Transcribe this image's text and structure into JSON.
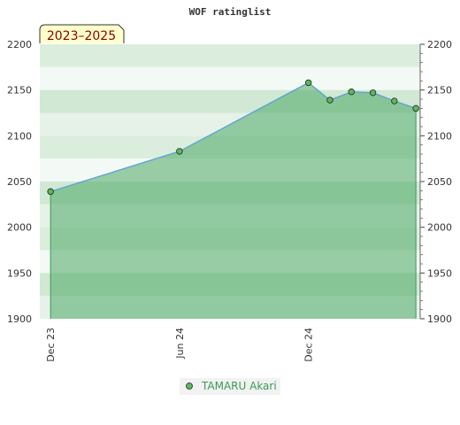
{
  "chart_data": {
    "type": "area",
    "title": "WOF ratinglist",
    "period_label": "2023–2025",
    "xlabel": "",
    "ylabel": "",
    "ylim": [
      1900,
      2200
    ],
    "y_ticks": [
      1900,
      1950,
      2000,
      2050,
      2100,
      2150,
      2200
    ],
    "x_ticks": [
      {
        "label": "Dec 23",
        "month": 0
      },
      {
        "label": "Jun 24",
        "month": 6
      },
      {
        "label": "Dec 24",
        "month": 12
      }
    ],
    "xlim_months": [
      -0.5,
      17.2
    ],
    "grid": false,
    "legend_position": "bottom-center",
    "series": [
      {
        "name": "TAMARU Akari",
        "color": "#3a9a55",
        "points": [
          {
            "month": 0,
            "value": 2039
          },
          {
            "month": 6,
            "value": 2083
          },
          {
            "month": 12,
            "value": 2158
          },
          {
            "month": 13,
            "value": 2139
          },
          {
            "month": 14,
            "value": 2148
          },
          {
            "month": 15,
            "value": 2147
          },
          {
            "month": 16,
            "value": 2138
          },
          {
            "month": 17,
            "value": 2130
          }
        ]
      }
    ]
  }
}
